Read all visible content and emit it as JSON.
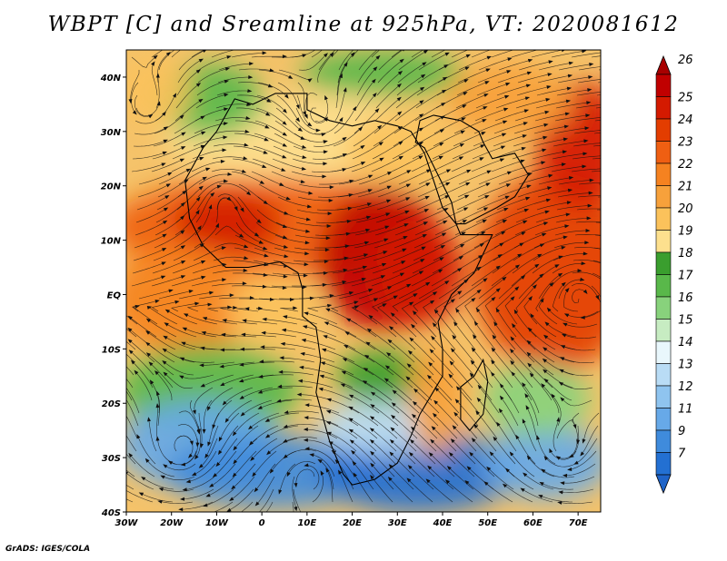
{
  "title": "WBPT [C] and Sreamline at 925hPa, VT: 2020081612",
  "credit": "GrADS: IGES/COLA",
  "map": {
    "lon_ticks": [
      "30W",
      "20W",
      "10W",
      "0",
      "10E",
      "20E",
      "30E",
      "40E",
      "50E",
      "60E",
      "70E"
    ],
    "lat_ticks": [
      "40N",
      "30N",
      "20N",
      "10N",
      "EQ",
      "10S",
      "20S",
      "30S",
      "40S"
    ],
    "lon_range": [
      -30,
      75
    ],
    "lat_range": [
      -40,
      45
    ]
  },
  "colorbar": {
    "labels": [
      "26",
      "25",
      "24",
      "23",
      "22",
      "21",
      "20",
      "19",
      "18",
      "17",
      "16",
      "15",
      "14",
      "13",
      "12",
      "11",
      "9",
      "7"
    ],
    "colors": [
      "#c00000",
      "#d41a00",
      "#e33d00",
      "#ef5f12",
      "#f58220",
      "#f7a13b",
      "#fbc25b",
      "#fde08e",
      "#3a9e2e",
      "#59b84a",
      "#88d27c",
      "#c7ecc2",
      "#e9f7fc",
      "#b9dcf5",
      "#8fc4ef",
      "#67a9e8",
      "#3f8bdc",
      "#2370d2"
    ],
    "top_arrow_color": "#a80000",
    "bottom_arrow_color": "#1f64c8"
  }
}
